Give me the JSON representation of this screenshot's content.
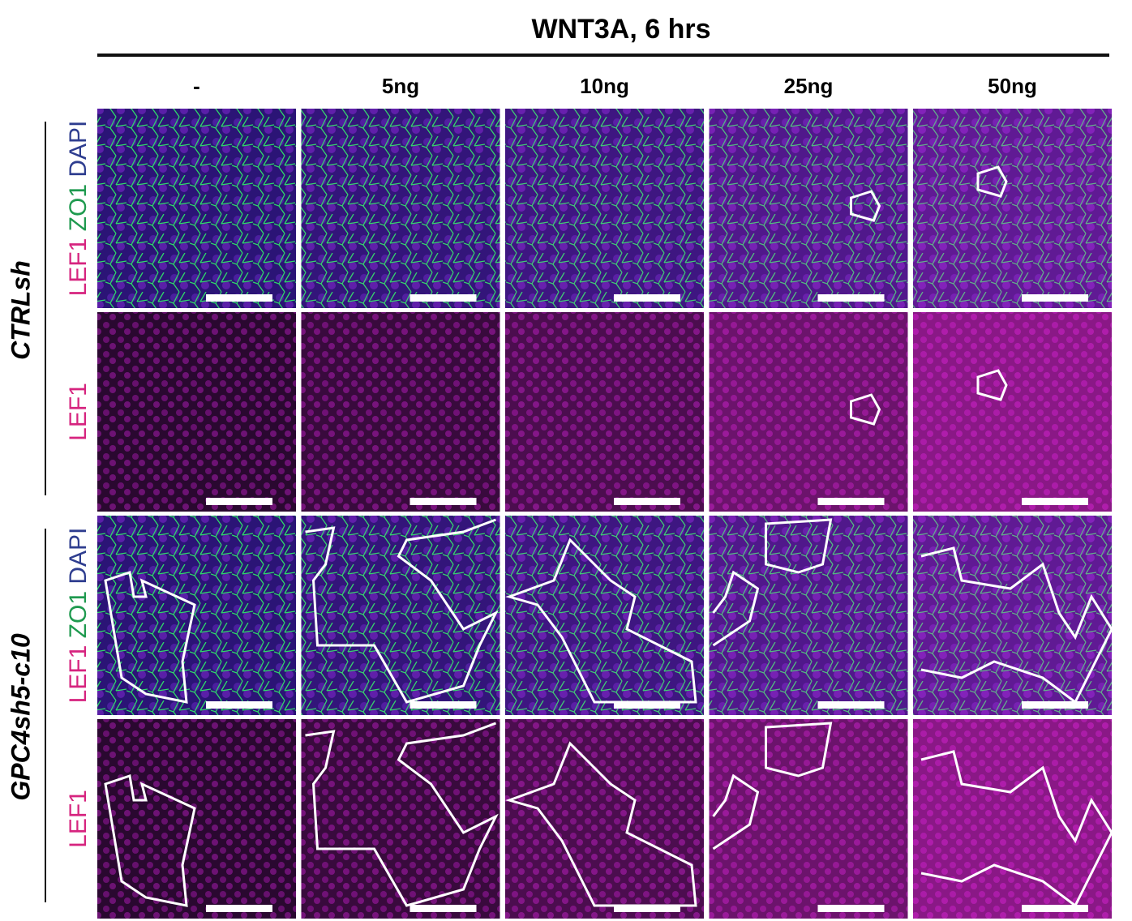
{
  "title": "WNT3A, 6 hrs",
  "columns": [
    "-",
    "5ng",
    "10ng",
    "25ng",
    "50ng"
  ],
  "groups": [
    {
      "label": "CTRLsh",
      "rows": [
        {
          "channels": [
            {
              "text": "LEF1",
              "color": "#d6247f"
            },
            {
              "text": "ZO1",
              "color": "#1f9a4f"
            },
            {
              "text": "DAPI",
              "color": "#2e3d8f"
            }
          ]
        },
        {
          "channels": [
            {
              "text": "LEF1",
              "color": "#d6247f"
            }
          ]
        }
      ]
    },
    {
      "label": "GPC4sh5-c10",
      "rows": [
        {
          "channels": [
            {
              "text": "LEF1",
              "color": "#d6247f"
            },
            {
              "text": "ZO1",
              "color": "#1f9a4f"
            },
            {
              "text": "DAPI",
              "color": "#2e3d8f"
            }
          ]
        },
        {
          "channels": [
            {
              "text": "LEF1",
              "color": "#d6247f"
            }
          ]
        }
      ]
    }
  ]
}
